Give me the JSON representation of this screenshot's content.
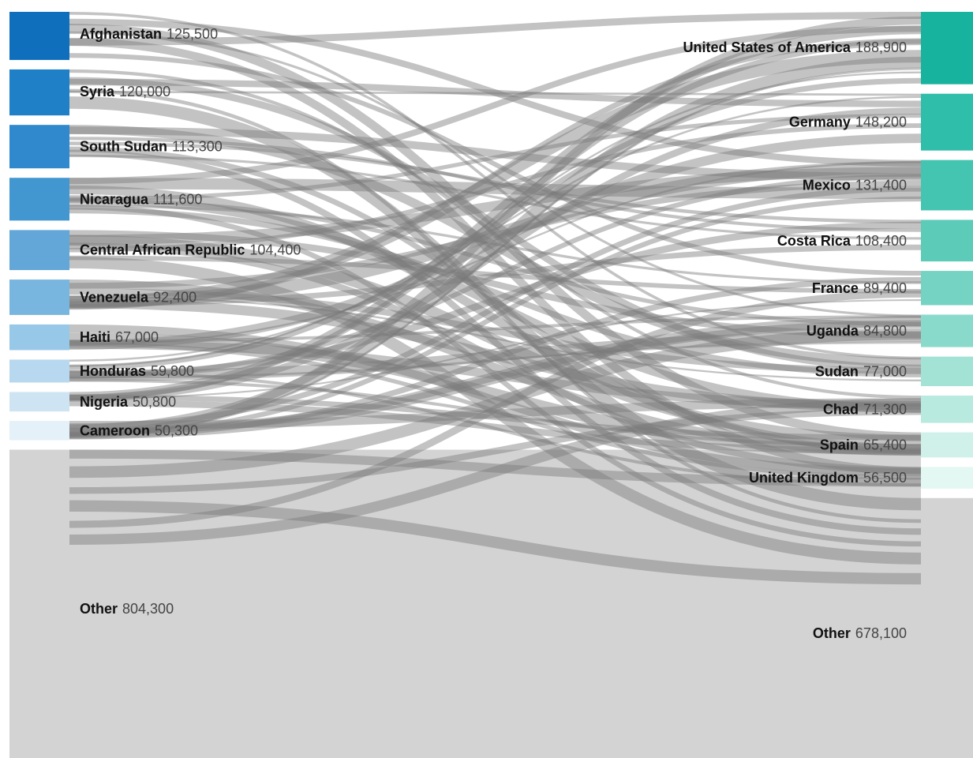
{
  "diagram": {
    "type": "sankey",
    "left_color_ramp": [
      "#0f6fbd",
      "#1f80c8",
      "#3089cc",
      "#4397d0",
      "#62a7d8",
      "#79b6df",
      "#98c8e8",
      "#b7d8ee",
      "#cfe4f2",
      "#e4f1f8",
      "#d3d3d3"
    ],
    "right_color_ramp": [
      "#17b39e",
      "#2ebea9",
      "#44c5b1",
      "#5ccbb8",
      "#74d3c2",
      "#8adacb",
      "#a2e3d6",
      "#b8eae0",
      "#cff1e9",
      "#e3f7f3",
      "#d3d3d3"
    ],
    "band_color": "#d3d3d3",
    "flow_color": "#7a7a7a",
    "origins": [
      {
        "name": "Afghanistan",
        "value_label": "125,500",
        "value": 125500
      },
      {
        "name": "Syria",
        "value_label": "120,000",
        "value": 120000
      },
      {
        "name": "South Sudan",
        "value_label": "113,300",
        "value": 113300
      },
      {
        "name": "Nicaragua",
        "value_label": "111,600",
        "value": 111600
      },
      {
        "name": "Central African Republic",
        "value_label": "104,400",
        "value": 104400
      },
      {
        "name": "Venezuela",
        "value_label": "92,400",
        "value": 92400
      },
      {
        "name": "Haiti",
        "value_label": "67,000",
        "value": 67000
      },
      {
        "name": "Honduras",
        "value_label": "59,800",
        "value": 59800
      },
      {
        "name": "Nigeria",
        "value_label": "50,800",
        "value": 50800
      },
      {
        "name": "Cameroon",
        "value_label": "50,300",
        "value": 50300
      },
      {
        "name": "Other",
        "value_label": "804,300",
        "value": 804300
      }
    ],
    "destinations": [
      {
        "name": "United States of America",
        "value_label": "188,900",
        "value": 188900
      },
      {
        "name": "Germany",
        "value_label": "148,200",
        "value": 148200
      },
      {
        "name": "Mexico",
        "value_label": "131,400",
        "value": 131400
      },
      {
        "name": "Costa Rica",
        "value_label": "108,400",
        "value": 108400
      },
      {
        "name": "France",
        "value_label": "89,400",
        "value": 89400
      },
      {
        "name": "Uganda",
        "value_label": "84,800",
        "value": 84800
      },
      {
        "name": "Sudan",
        "value_label": "77,000",
        "value": 77000
      },
      {
        "name": "Chad",
        "value_label": "71,300",
        "value": 71300
      },
      {
        "name": "Spain",
        "value_label": "65,400",
        "value": 65400
      },
      {
        "name": "United Kingdom",
        "value_label": "56,500",
        "value": 56500
      },
      {
        "name": "Other",
        "value_label": "678,100",
        "value": 678100
      }
    ]
  }
}
